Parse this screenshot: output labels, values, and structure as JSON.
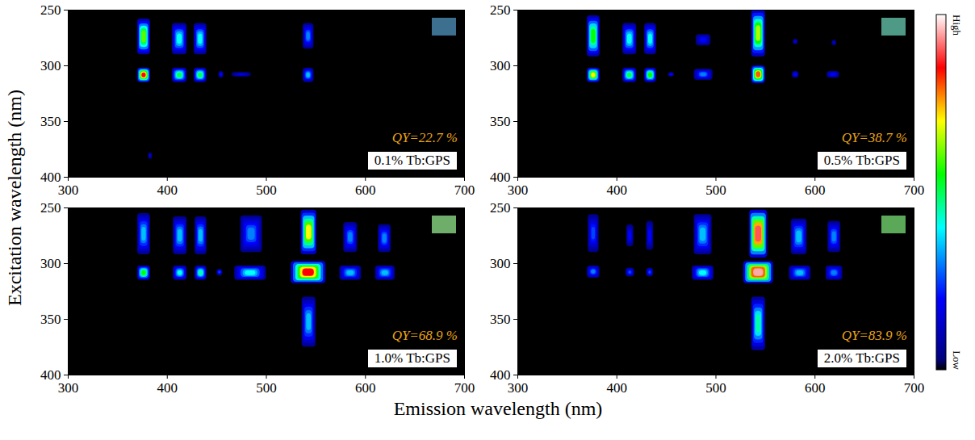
{
  "chart_data": {
    "type": "heatmap_grid",
    "xlabel": "Emission wavelength (nm)",
    "ylabel": "Excitation wavelength (nm)",
    "xlim": [
      300,
      700
    ],
    "xticks": [
      300,
      400,
      500,
      600,
      700
    ],
    "ylim": [
      250,
      400
    ],
    "yticks": [
      250,
      300,
      350,
      400
    ],
    "colorbar": {
      "range": [
        0,
        1
      ],
      "ticks": [
        {
          "value": 0,
          "label": "Low"
        },
        {
          "value": 1,
          "label": "High"
        }
      ]
    },
    "panels": [
      {
        "label": "0.1% Tb:GPS",
        "annotation": "QY=22.7 %",
        "peaks": [
          {
            "emission": [
              370,
              383
            ],
            "excitation": [
              258,
              290
            ],
            "intensity": 0.6
          },
          {
            "emission": [
              370,
              383
            ],
            "excitation": [
              302,
              315
            ],
            "intensity": 0.85
          },
          {
            "emission": [
              405,
              420
            ],
            "excitation": [
              262,
              290
            ],
            "intensity": 0.4
          },
          {
            "emission": [
              405,
              420
            ],
            "excitation": [
              302,
              315
            ],
            "intensity": 0.5
          },
          {
            "emission": [
              427,
              440
            ],
            "excitation": [
              262,
              290
            ],
            "intensity": 0.4
          },
          {
            "emission": [
              427,
              440
            ],
            "excitation": [
              302,
              315
            ],
            "intensity": 0.5
          },
          {
            "emission": [
              452,
              457
            ],
            "excitation": [
              305,
              311
            ],
            "intensity": 0.2
          },
          {
            "emission": [
              465,
              485
            ],
            "excitation": [
              306,
              310
            ],
            "intensity": 0.15
          },
          {
            "emission": [
              537,
              548
            ],
            "excitation": [
              262,
              285
            ],
            "intensity": 0.3
          },
          {
            "emission": [
              537,
              548
            ],
            "excitation": [
              302,
              315
            ],
            "intensity": 0.35
          },
          {
            "emission": [
              381,
              385
            ],
            "excitation": [
              378,
              384
            ],
            "intensity": 0.15
          }
        ]
      },
      {
        "label": "0.5% Tb:GPS",
        "annotation": "QY=38.7 %",
        "peaks": [
          {
            "emission": [
              370,
              383
            ],
            "excitation": [
              255,
              292
            ],
            "intensity": 0.55
          },
          {
            "emission": [
              370,
              383
            ],
            "excitation": [
              302,
              315
            ],
            "intensity": 0.7
          },
          {
            "emission": [
              406,
              420
            ],
            "excitation": [
              262,
              290
            ],
            "intensity": 0.4
          },
          {
            "emission": [
              406,
              420
            ],
            "excitation": [
              302,
              315
            ],
            "intensity": 0.5
          },
          {
            "emission": [
              428,
              440
            ],
            "excitation": [
              262,
              290
            ],
            "intensity": 0.4
          },
          {
            "emission": [
              428,
              440
            ],
            "excitation": [
              302,
              315
            ],
            "intensity": 0.55
          },
          {
            "emission": [
              452,
              458
            ],
            "excitation": [
              306,
              310
            ],
            "intensity": 0.2
          },
          {
            "emission": [
              480,
              495
            ],
            "excitation": [
              272,
              282
            ],
            "intensity": 0.2
          },
          {
            "emission": [
              478,
              497
            ],
            "excitation": [
              303,
              313
            ],
            "intensity": 0.3
          },
          {
            "emission": [
              536,
              550
            ],
            "excitation": [
              250,
              292
            ],
            "intensity": 0.65
          },
          {
            "emission": [
              536,
              550
            ],
            "excitation": [
              300,
              316
            ],
            "intensity": 0.8
          },
          {
            "emission": [
              578,
              583
            ],
            "excitation": [
              276,
              281
            ],
            "intensity": 0.15
          },
          {
            "emission": [
              577,
              584
            ],
            "excitation": [
              305,
              311
            ],
            "intensity": 0.2
          },
          {
            "emission": [
              617,
              622
            ],
            "excitation": [
              277,
              282
            ],
            "intensity": 0.12
          },
          {
            "emission": [
              612,
              625
            ],
            "excitation": [
              305,
              311
            ],
            "intensity": 0.2
          }
        ]
      },
      {
        "label": "1.0% Tb:GPS",
        "annotation": "QY=68.9 %",
        "peaks": [
          {
            "emission": [
              370,
              383
            ],
            "excitation": [
              255,
              292
            ],
            "intensity": 0.35
          },
          {
            "emission": [
              370,
              383
            ],
            "excitation": [
              302,
              315
            ],
            "intensity": 0.55
          },
          {
            "emission": [
              406,
              420
            ],
            "excitation": [
              258,
              292
            ],
            "intensity": 0.35
          },
          {
            "emission": [
              406,
              420
            ],
            "excitation": [
              302,
              315
            ],
            "intensity": 0.4
          },
          {
            "emission": [
              428,
              440
            ],
            "excitation": [
              258,
              292
            ],
            "intensity": 0.35
          },
          {
            "emission": [
              428,
              440
            ],
            "excitation": [
              302,
              315
            ],
            "intensity": 0.45
          },
          {
            "emission": [
              450,
              456
            ],
            "excitation": [
              305,
              311
            ],
            "intensity": 0.25
          },
          {
            "emission": [
              474,
              496
            ],
            "excitation": [
              257,
              290
            ],
            "intensity": 0.3
          },
          {
            "emission": [
              468,
              500
            ],
            "excitation": [
              302,
              315
            ],
            "intensity": 0.4
          },
          {
            "emission": [
              535,
              551
            ],
            "excitation": [
              252,
              292
            ],
            "intensity": 0.7
          },
          {
            "emission": [
              525,
              560
            ],
            "excitation": [
              298,
              318
            ],
            "intensity": 0.85
          },
          {
            "emission": [
              536,
              550
            ],
            "excitation": [
              330,
              375
            ],
            "intensity": 0.35
          },
          {
            "emission": [
              578,
              592
            ],
            "excitation": [
              263,
              290
            ],
            "intensity": 0.3
          },
          {
            "emission": [
              574,
              596
            ],
            "excitation": [
              302,
              315
            ],
            "intensity": 0.35
          },
          {
            "emission": [
              613,
              626
            ],
            "excitation": [
              265,
              290
            ],
            "intensity": 0.3
          },
          {
            "emission": [
              610,
              630
            ],
            "excitation": [
              302,
              315
            ],
            "intensity": 0.35
          }
        ]
      },
      {
        "label": "2.0% Tb:GPS",
        "annotation": "QY=83.9 %",
        "peaks": [
          {
            "emission": [
              371,
              382
            ],
            "excitation": [
              256,
              290
            ],
            "intensity": 0.25
          },
          {
            "emission": [
              370,
              383
            ],
            "excitation": [
              302,
              313
            ],
            "intensity": 0.3
          },
          {
            "emission": [
              410,
              417
            ],
            "excitation": [
              265,
              285
            ],
            "intensity": 0.2
          },
          {
            "emission": [
              409,
              418
            ],
            "excitation": [
              304,
              312
            ],
            "intensity": 0.25
          },
          {
            "emission": [
              430,
              437
            ],
            "excitation": [
              262,
              288
            ],
            "intensity": 0.2
          },
          {
            "emission": [
              430,
              437
            ],
            "excitation": [
              304,
              312
            ],
            "intensity": 0.25
          },
          {
            "emission": [
              478,
              496
            ],
            "excitation": [
              256,
              292
            ],
            "intensity": 0.35
          },
          {
            "emission": [
              476,
              498
            ],
            "excitation": [
              302,
              315
            ],
            "intensity": 0.4
          },
          {
            "emission": [
              534,
              552
            ],
            "excitation": [
              252,
              295
            ],
            "intensity": 0.9
          },
          {
            "emission": [
              528,
              558
            ],
            "excitation": [
              298,
              318
            ],
            "intensity": 0.95
          },
          {
            "emission": [
              536,
              550
            ],
            "excitation": [
              330,
              378
            ],
            "intensity": 0.45
          },
          {
            "emission": [
              576,
              592
            ],
            "excitation": [
              260,
              292
            ],
            "intensity": 0.35
          },
          {
            "emission": [
              574,
              596
            ],
            "excitation": [
              302,
              315
            ],
            "intensity": 0.35
          },
          {
            "emission": [
              613,
              626
            ],
            "excitation": [
              262,
              290
            ],
            "intensity": 0.3
          },
          {
            "emission": [
              611,
              628
            ],
            "excitation": [
              302,
              315
            ],
            "intensity": 0.3
          }
        ]
      }
    ]
  }
}
